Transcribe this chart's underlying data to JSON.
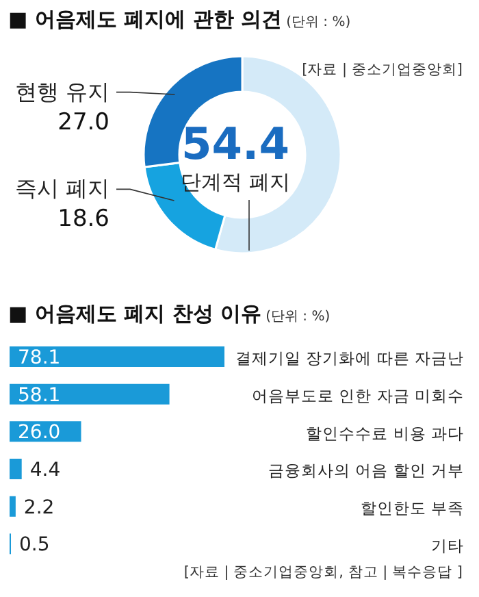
{
  "chart_data": [
    {
      "type": "donut",
      "title": "■ 어음제도 폐지에 관한 의견",
      "subtitle": "(단위 : %)",
      "annotations": [
        "[자료 | 중소기업중앙회]"
      ],
      "categories": [
        "단계적 폐지",
        "즉시 폐지",
        "현행 유지"
      ],
      "values": [
        54.4,
        18.6,
        27.0
      ],
      "value_labels": [
        "54.4",
        "18.6",
        "27.0"
      ],
      "colors": [
        "#d4eaf8",
        "#16a3e0",
        "#1674c2"
      ],
      "legend": false
    },
    {
      "type": "bar",
      "orientation": "horizontal",
      "title": "■ 어음제도 폐지 찬성 이유",
      "subtitle": "(단위 : %)",
      "annotations": [
        "[자료 | 중소기업중앙회, 참고 | 복수응답 ]"
      ],
      "categories": [
        "결제기일 장기화에 따른 자금난",
        "어음부도로 인한 자금 미회수",
        "할인수수료 비용 과다",
        "금융회사의 어음 할인 거부",
        "할인한도 부족",
        "기타"
      ],
      "values": [
        78.1,
        58.1,
        26.0,
        4.4,
        2.2,
        0.5
      ],
      "value_labels": [
        "78.1",
        "58.1",
        "26.0",
        "4.4",
        "2.2",
        "0.5"
      ],
      "color": "#1a9ad8",
      "legend": false
    }
  ]
}
